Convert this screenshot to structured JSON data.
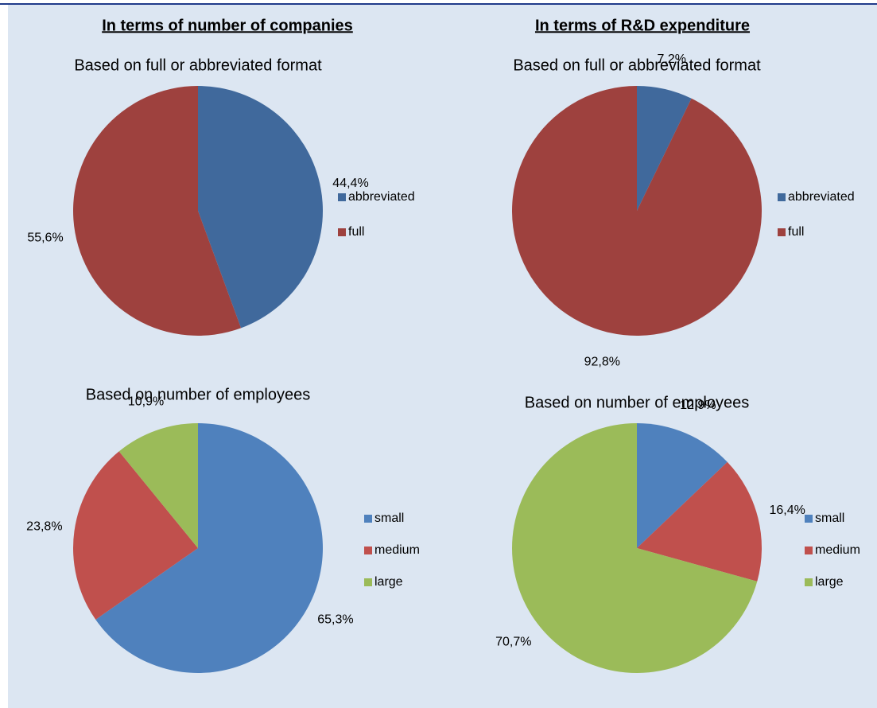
{
  "column_titles": [
    "In terms of number of companies",
    "In terms of R&D expenditure"
  ],
  "chart_data": [
    {
      "type": "pie",
      "title": "Based on full or abbreviated format",
      "categories": [
        "abbreviated",
        "full"
      ],
      "values": [
        44.4,
        55.6
      ],
      "value_labels": [
        "44,4%",
        "55,6%"
      ],
      "colors": [
        "#40699c",
        "#9e413e"
      ]
    },
    {
      "type": "pie",
      "title": "Based on full or abbreviated format",
      "categories": [
        "abbreviated",
        "full"
      ],
      "values": [
        7.2,
        92.8
      ],
      "value_labels": [
        "7,2%",
        "92,8%"
      ],
      "colors": [
        "#40699c",
        "#9e413e"
      ]
    },
    {
      "type": "pie",
      "title": "Based on number of employees",
      "categories": [
        "small",
        "medium",
        "large"
      ],
      "values": [
        65.3,
        23.8,
        10.9
      ],
      "value_labels": [
        "65,3%",
        "23,8%",
        "10,9%"
      ],
      "colors": [
        "#4f81bd",
        "#c0504d",
        "#9bbb59"
      ]
    },
    {
      "type": "pie",
      "title": "Based on number of employees",
      "categories": [
        "small",
        "medium",
        "large"
      ],
      "values": [
        12.9,
        16.4,
        70.7
      ],
      "value_labels": [
        "12,9%",
        "16,4%",
        "70,7%"
      ],
      "colors": [
        "#4f81bd",
        "#c0504d",
        "#9bbb59"
      ]
    }
  ]
}
